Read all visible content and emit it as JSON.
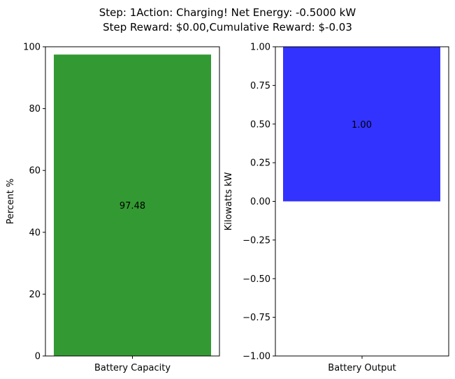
{
  "title_line1": "Step: 1Action: Charging! Net Energy: -0.5000 kW",
  "title_line2": "Step Reward: $0.00,Cumulative Reward: $-0.03",
  "chart_data": [
    {
      "type": "bar",
      "categories": [
        "Battery Capacity"
      ],
      "values": [
        97.48
      ],
      "data_labels": [
        "97.48"
      ],
      "xlabel": "",
      "ylabel": "Percent %",
      "ylim": [
        0,
        100
      ],
      "yticks": [
        0,
        20,
        40,
        60,
        80,
        100
      ],
      "ytick_labels": [
        "0",
        "20",
        "40",
        "60",
        "80",
        "100"
      ],
      "color": "#339933",
      "grid": false
    },
    {
      "type": "bar",
      "categories": [
        "Battery Output"
      ],
      "values": [
        1.0
      ],
      "data_labels": [
        "1.00"
      ],
      "xlabel": "",
      "ylabel": "Kilowatts kW",
      "ylim": [
        -1.0,
        1.0
      ],
      "yticks": [
        -1.0,
        -0.75,
        -0.5,
        -0.25,
        0.0,
        0.25,
        0.5,
        0.75,
        1.0
      ],
      "ytick_labels": [
        "−1.00",
        "−0.75",
        "−0.50",
        "−0.25",
        "0.00",
        "0.25",
        "0.50",
        "0.75",
        "1.00"
      ],
      "color": "#3333ff",
      "grid": false
    }
  ]
}
